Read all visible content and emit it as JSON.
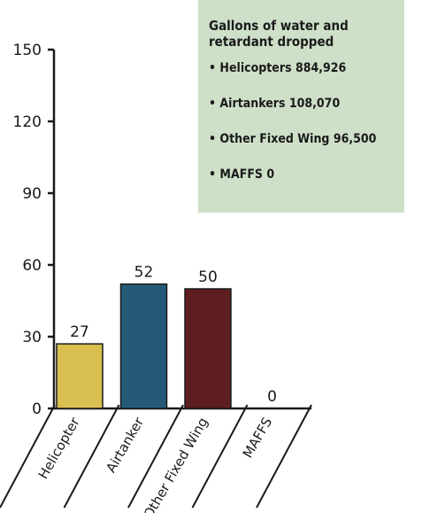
{
  "chart_data": {
    "type": "bar",
    "categories": [
      "Helicopter",
      "Airtanker",
      "Other Fixed Wing",
      "MAFFS"
    ],
    "values": [
      27,
      52,
      50,
      0
    ],
    "colors": [
      "#d8bf50",
      "#245a78",
      "#5e1e20"
    ],
    "ylim": [
      0,
      150
    ],
    "yticks": [
      0,
      30,
      60,
      90,
      120,
      150
    ],
    "annotation": {
      "title": "Gallons of water and retardant dropped",
      "items": [
        "• Helicopters 884,926",
        "• Airtankers 108,070",
        "• Other Fixed Wing 96,500",
        "• MAFFS 0"
      ]
    }
  }
}
